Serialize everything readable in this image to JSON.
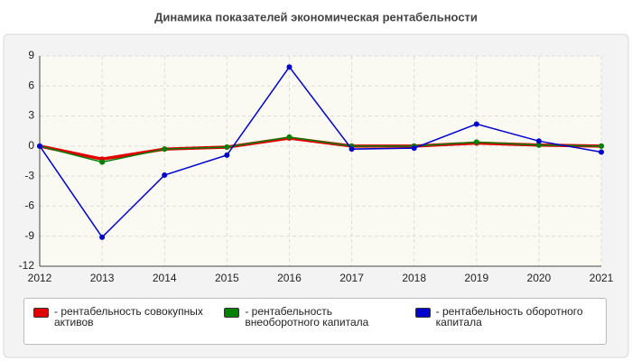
{
  "chart_data": {
    "type": "line",
    "title": "Динамика показателей экономическая рентабельности",
    "categories": [
      "2012",
      "2013",
      "2014",
      "2015",
      "2016",
      "2017",
      "2018",
      "2019",
      "2020",
      "2021"
    ],
    "series": [
      {
        "name": "- рентабельность совокупных активов",
        "color": "#e00000",
        "values": [
          0,
          -1.3,
          -0.3,
          -0.1,
          0.8,
          0,
          0,
          0.3,
          0.1,
          0
        ]
      },
      {
        "name": "- рентабельность внеоборотного капитала",
        "color": "#008000",
        "values": [
          0,
          -1.6,
          -0.3,
          -0.1,
          0.9,
          0,
          0,
          0.4,
          0.1,
          0
        ]
      },
      {
        "name": "- рентабельность оборотного капитала",
        "color": "#0000cc",
        "values": [
          0,
          -9.1,
          -2.9,
          -0.9,
          7.9,
          -0.3,
          -0.2,
          2.2,
          0.5,
          -0.6
        ]
      }
    ],
    "ylim": [
      -12,
      9
    ],
    "yticks": [
      -12,
      -9,
      -6,
      -3,
      0,
      3,
      6,
      9
    ],
    "grid": true
  }
}
